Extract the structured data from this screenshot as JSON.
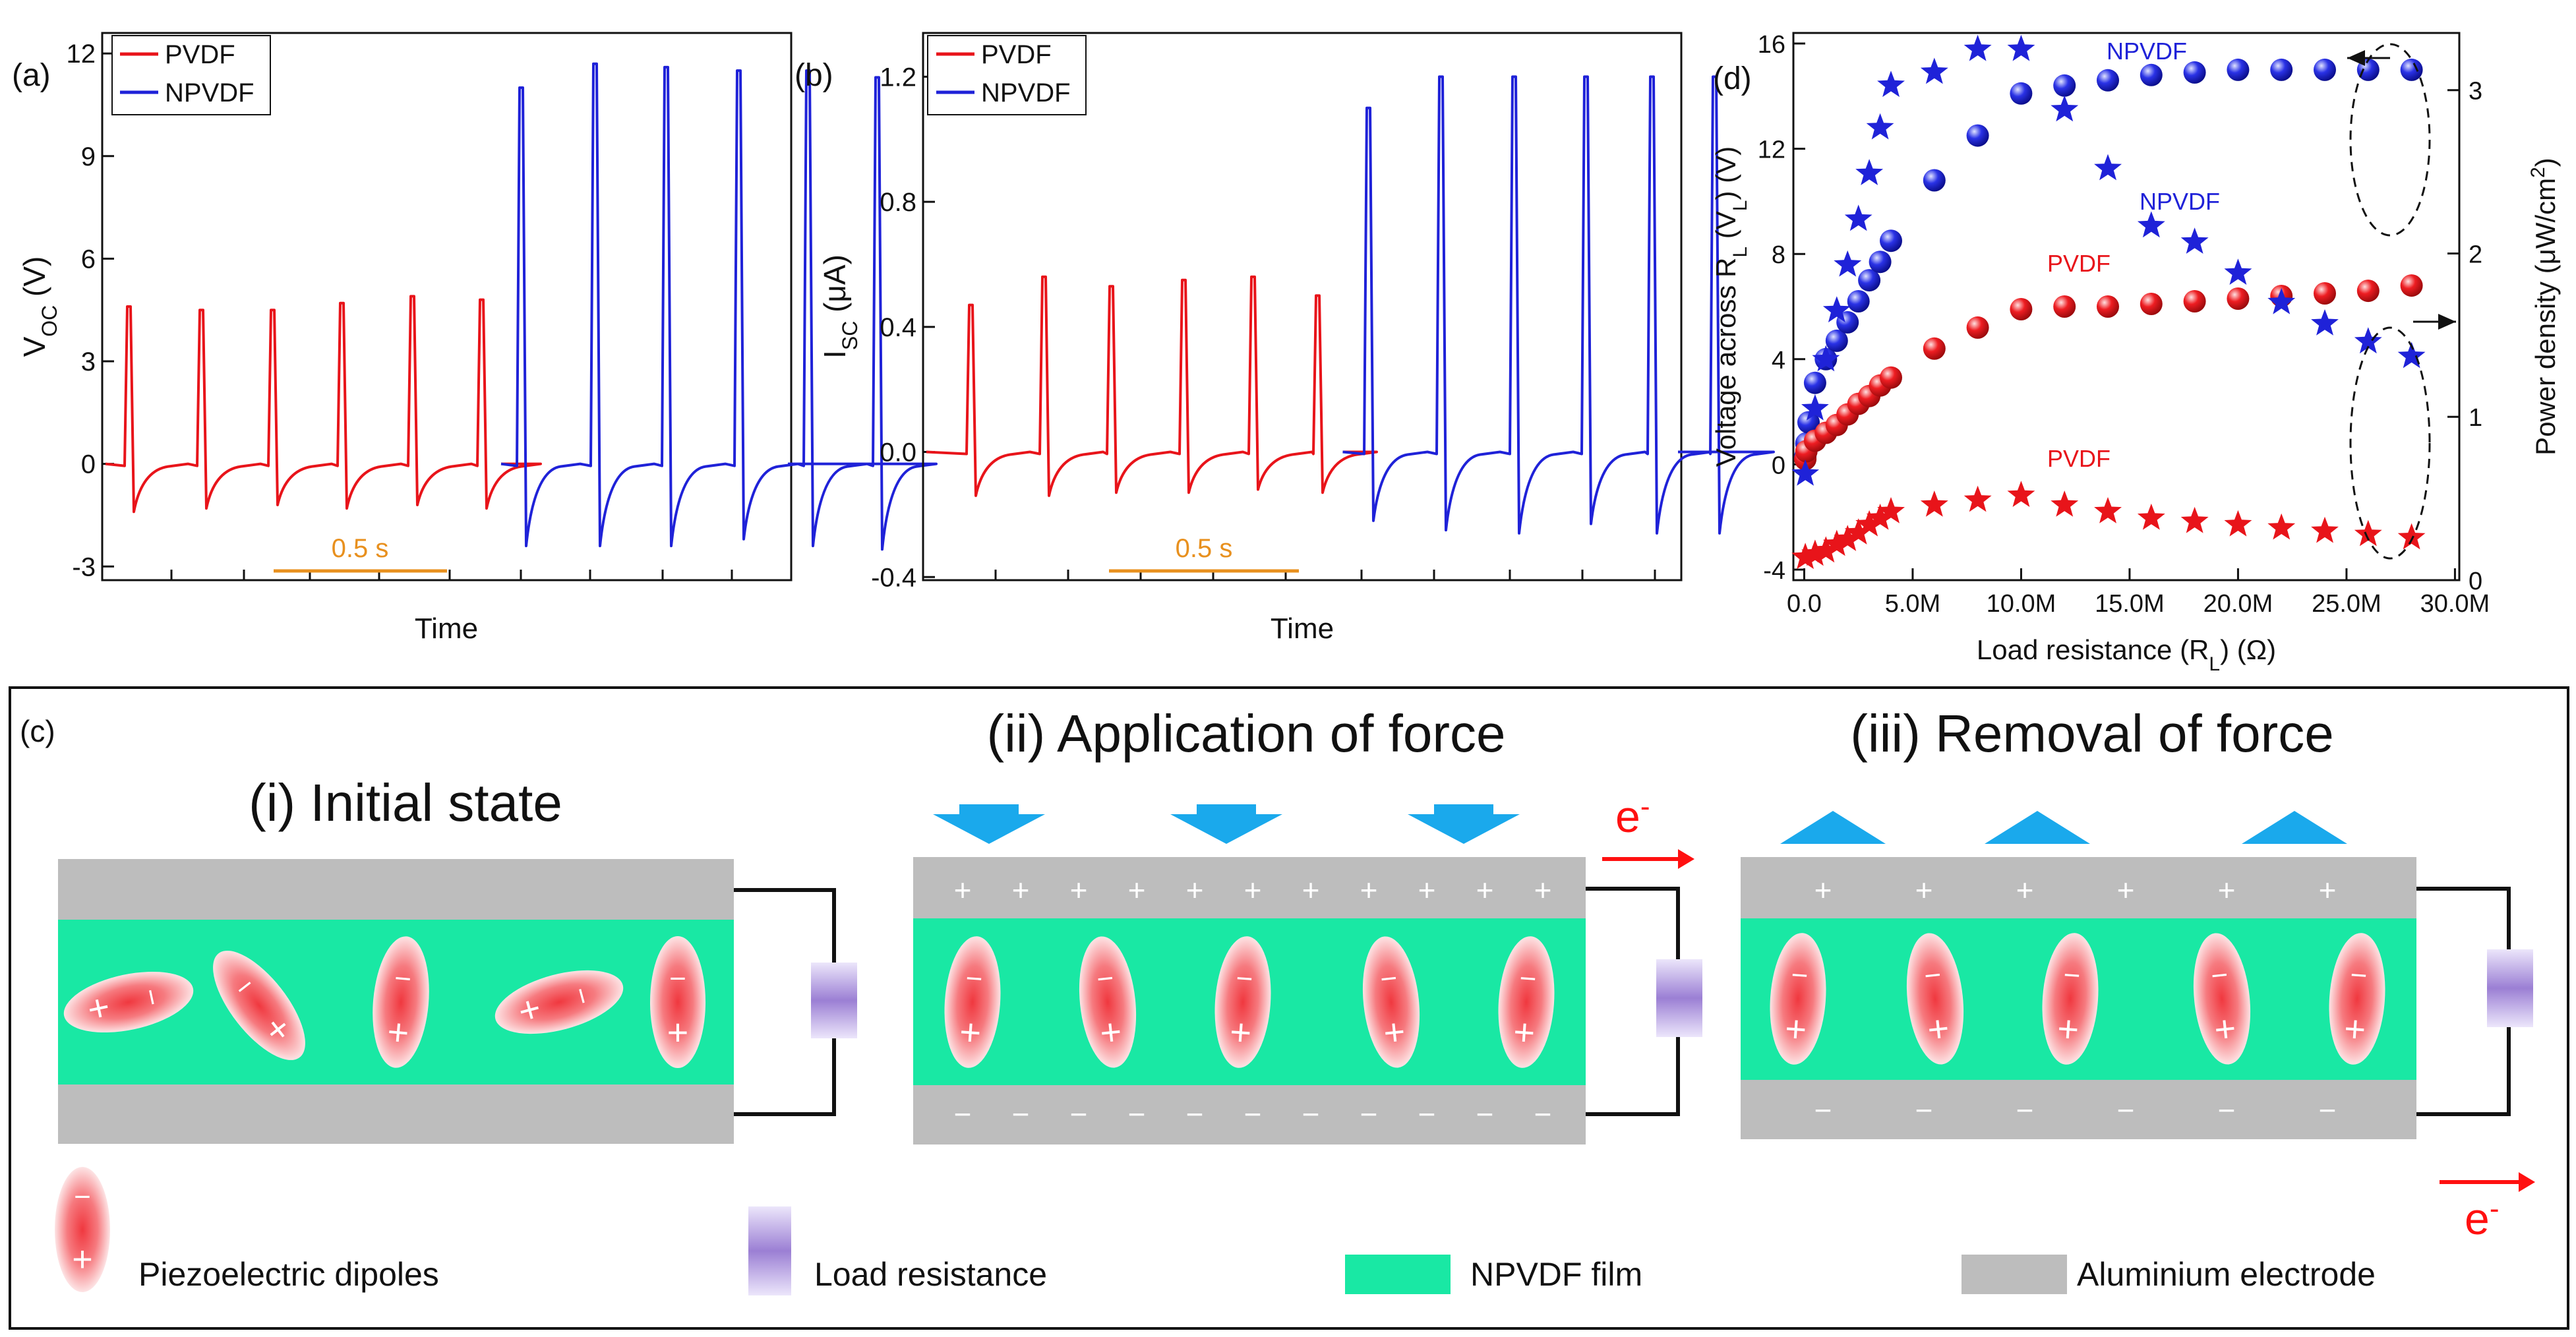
{
  "colors": {
    "pvdf": "#e8141a",
    "npvdf": "#1f22d8",
    "scale": "#e8901e",
    "film": "#19e8a4",
    "electrode": "#bdbdbd",
    "arrow": "#1aa9ec",
    "electron": "#ff1010",
    "dipole": "#f45c63",
    "resistor": "#a78fd6"
  },
  "chart_data": [
    {
      "panel": "(a)",
      "type": "line",
      "xlabel": "Time",
      "ylabel": "V",
      "ylabel_main": "V",
      "ylabel_sub": "OC",
      "ylabel_unit": "(V)",
      "ylim": [
        -3.4,
        12.6
      ],
      "yticks": [
        "-3",
        "0",
        "3",
        "6",
        "9",
        "12"
      ],
      "legend": [
        "PVDF",
        "NPVDF"
      ],
      "scalebar": "0.5 s",
      "series": [
        {
          "name": "PVDF",
          "peaks": [
            4.6,
            4.5,
            4.5,
            4.7,
            4.9,
            4.8
          ],
          "troughs": [
            -1.4,
            -1.3,
            -1.2,
            -1.3,
            -1.2,
            -1.3
          ]
        },
        {
          "name": "NPVDF",
          "peaks": [
            11.0,
            11.7,
            11.6,
            11.5,
            11.5,
            11.3
          ],
          "troughs": [
            -2.4,
            -2.4,
            -2.4,
            -2.2,
            -2.4,
            -2.5
          ]
        }
      ]
    },
    {
      "panel": "(b)",
      "type": "line",
      "xlabel": "Time",
      "ylabel_main": "I",
      "ylabel_sub": "SC",
      "ylabel_unit": "(μA)",
      "ylim": [
        -0.41,
        1.34
      ],
      "yticks": [
        "-0.4",
        "0.0",
        "0.4",
        "0.8",
        "1.2"
      ],
      "legend": [
        "PVDF",
        "NPVDF"
      ],
      "scalebar": "0.5 s",
      "series": [
        {
          "name": "PVDF",
          "peaks": [
            0.47,
            0.56,
            0.53,
            0.55,
            0.56,
            0.5
          ],
          "troughs": [
            -0.14,
            -0.14,
            -0.13,
            -0.13,
            -0.12,
            -0.13
          ]
        },
        {
          "name": "NPVDF",
          "peaks": [
            1.1,
            1.2,
            1.2,
            1.2,
            1.2,
            1.2
          ],
          "troughs": [
            -0.22,
            -0.25,
            -0.26,
            -0.23,
            -0.26,
            -0.26
          ]
        }
      ]
    },
    {
      "panel": "(d)",
      "type": "scatter",
      "xlabel": "Load resistance (R",
      "xlabel_sub": "L",
      "xlabel_unit": ") (Ω)",
      "ylabel_left": "Voltage across R",
      "ylabel_left_sub": "L",
      "ylabel_left_mid": " (V",
      "ylabel_left_sub2": "L",
      "ylabel_left_unit": ") (V)",
      "ylabel_right": "Power density (μW/cm",
      "ylabel_right_sup": "2",
      "ylabel_right_end": ")",
      "xlim": [
        -0.5,
        30.2
      ],
      "ylim_left": [
        -4.4,
        16.4
      ],
      "ylim_right": [
        0,
        3.35
      ],
      "xticks": [
        "0.0",
        "5.0M",
        "10.0M",
        "15.0M",
        "20.0M",
        "25.0M",
        "30.0M"
      ],
      "yticks_left": [
        "-4",
        "0",
        "4",
        "8",
        "12",
        "16"
      ],
      "yticks_right": [
        "0",
        "1",
        "2",
        "3"
      ],
      "series": [
        {
          "name": "NPVDF voltage",
          "label": "NPVDF",
          "marker": "sphere",
          "axis": "left",
          "x": [
            0.05,
            0.1,
            0.2,
            0.5,
            1,
            1.5,
            2,
            2.5,
            3,
            3.5,
            4,
            6,
            8,
            10,
            12,
            14,
            16,
            18,
            20,
            22,
            24,
            26,
            28
          ],
          "y": [
            0.3,
            0.8,
            1.6,
            3.1,
            4.0,
            4.7,
            5.4,
            6.2,
            7.0,
            7.7,
            8.5,
            10.8,
            12.5,
            14.1,
            14.4,
            14.6,
            14.8,
            14.9,
            15.0,
            15.0,
            15.0,
            15.0,
            15.0
          ]
        },
        {
          "name": "PVDF voltage",
          "label": "PVDF",
          "marker": "sphere",
          "axis": "left",
          "x": [
            0.05,
            0.1,
            0.5,
            1,
            1.5,
            2,
            2.5,
            3,
            3.5,
            4,
            6,
            8,
            10,
            12,
            14,
            16,
            18,
            20,
            22,
            24,
            26,
            28
          ],
          "y": [
            0.2,
            0.5,
            0.9,
            1.2,
            1.5,
            1.9,
            2.3,
            2.6,
            3.0,
            3.3,
            4.4,
            5.2,
            5.9,
            6.0,
            6.0,
            6.1,
            6.2,
            6.3,
            6.4,
            6.5,
            6.6,
            6.8
          ]
        },
        {
          "name": "NPVDF power",
          "label": "NPVDF",
          "marker": "star",
          "axis": "right",
          "x": [
            0.05,
            0.5,
            1,
            1.5,
            2,
            2.5,
            3,
            3.5,
            4,
            6,
            8,
            10,
            12,
            14,
            16,
            18,
            20,
            22,
            24,
            26,
            28
          ],
          "y": [
            0.65,
            1.05,
            1.35,
            1.65,
            1.93,
            2.21,
            2.49,
            2.77,
            3.03,
            3.11,
            3.25,
            3.25,
            2.88,
            2.52,
            2.17,
            2.07,
            1.88,
            1.7,
            1.57,
            1.46,
            1.37
          ]
        },
        {
          "name": "PVDF power",
          "label": "PVDF",
          "marker": "star",
          "axis": "right",
          "x": [
            0.05,
            0.5,
            1,
            1.5,
            2,
            2.5,
            3,
            3.5,
            4,
            6,
            8,
            10,
            12,
            14,
            16,
            18,
            20,
            22,
            24,
            26,
            28
          ],
          "y": [
            0.14,
            0.16,
            0.18,
            0.22,
            0.25,
            0.29,
            0.34,
            0.38,
            0.42,
            0.46,
            0.49,
            0.52,
            0.46,
            0.42,
            0.38,
            0.36,
            0.34,
            0.32,
            0.3,
            0.28,
            0.26
          ]
        }
      ]
    }
  ],
  "schematic": {
    "panel": "(c)",
    "stages": [
      {
        "title": "(i) Initial state"
      },
      {
        "title": "(ii) Application of force",
        "top_charge": "+",
        "bottom_charge": "−",
        "electron": "e",
        "electron_sup": "-"
      },
      {
        "title": "(iii) Removal of force",
        "top_charge": "+",
        "bottom_charge": "−",
        "electron": "e",
        "electron_sup": "-"
      }
    ],
    "dipole_signs": {
      "plus": "+",
      "minus": "−",
      "minus_small": "ı"
    },
    "legend": [
      "Piezoelectric dipoles",
      "Load resistance",
      "NPVDF film",
      "Aluminium electrode"
    ]
  }
}
